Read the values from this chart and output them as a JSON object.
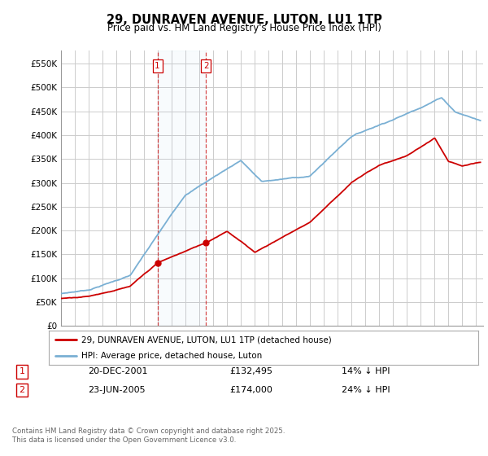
{
  "title": "29, DUNRAVEN AVENUE, LUTON, LU1 1TP",
  "subtitle": "Price paid vs. HM Land Registry's House Price Index (HPI)",
  "ylabel_ticks": [
    "£0",
    "£50K",
    "£100K",
    "£150K",
    "£200K",
    "£250K",
    "£300K",
    "£350K",
    "£400K",
    "£450K",
    "£500K",
    "£550K"
  ],
  "ytick_values": [
    0,
    50000,
    100000,
    150000,
    200000,
    250000,
    300000,
    350000,
    400000,
    450000,
    500000,
    550000
  ],
  "ylim": [
    0,
    578000
  ],
  "legend_line1": "29, DUNRAVEN AVENUE, LUTON, LU1 1TP (detached house)",
  "legend_line2": "HPI: Average price, detached house, Luton",
  "sale1_label": "1",
  "sale1_date": "20-DEC-2001",
  "sale1_price": "£132,495",
  "sale1_hpi": "14% ↓ HPI",
  "sale1_year": 2001.97,
  "sale1_value": 132495,
  "sale2_label": "2",
  "sale2_date": "23-JUN-2005",
  "sale2_price": "£174,000",
  "sale2_hpi": "24% ↓ HPI",
  "sale2_year": 2005.48,
  "sale2_value": 174000,
  "line_color_red": "#cc0000",
  "line_color_blue": "#7ab0d4",
  "vline_color": "#cc0000",
  "background_color": "#ffffff",
  "grid_color": "#cccccc",
  "footnote": "Contains HM Land Registry data © Crown copyright and database right 2025.\nThis data is licensed under the Open Government Licence v3.0."
}
